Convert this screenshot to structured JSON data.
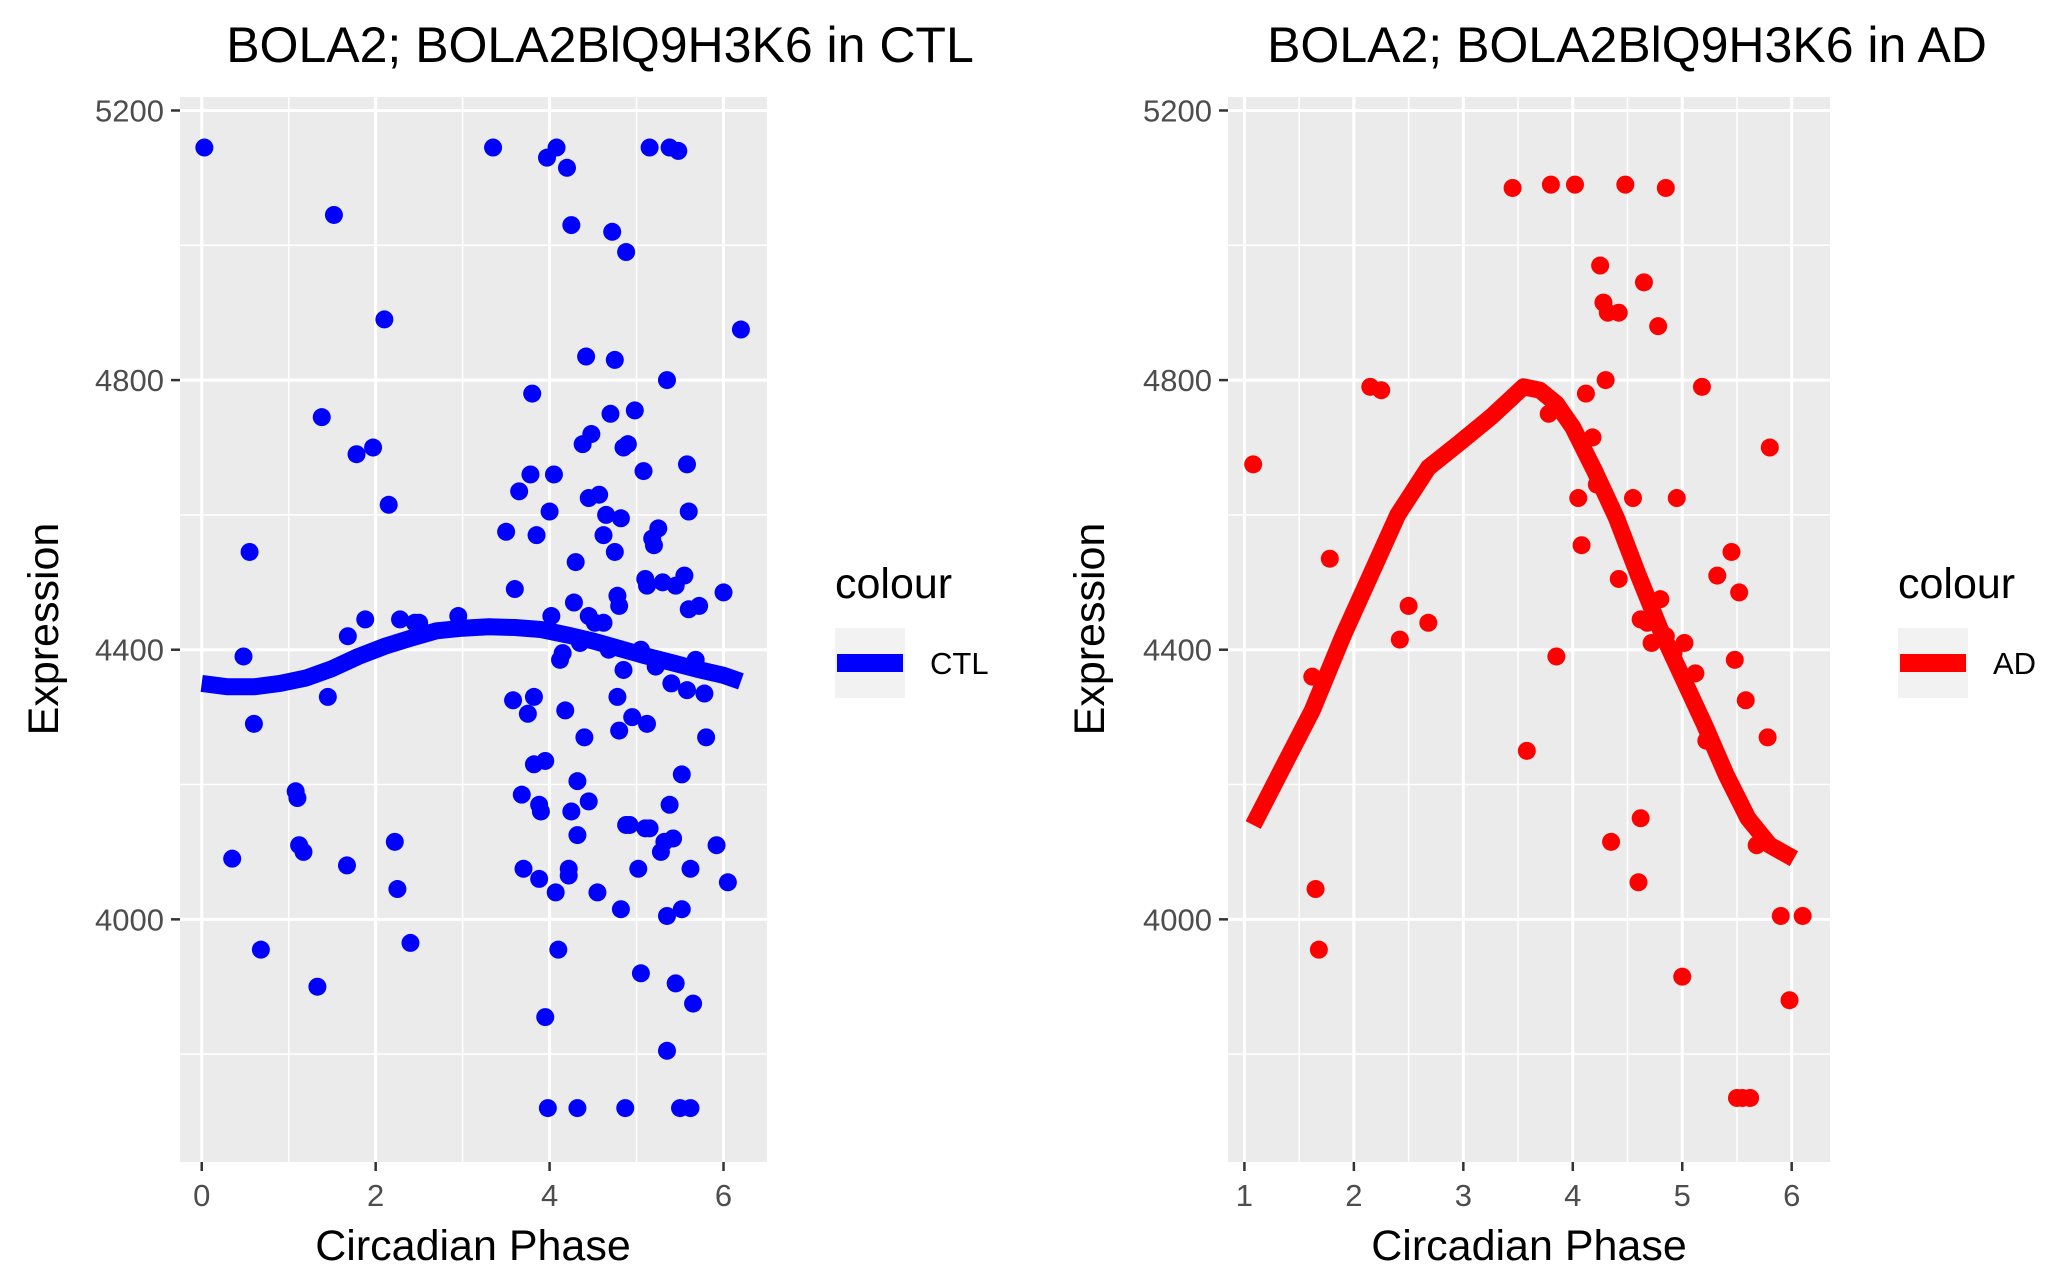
{
  "chart_data": [
    {
      "type": "scatter",
      "title": "BOLA2; BOLA2BlQ9H3K6 in CTL",
      "xlabel": "Circadian Phase",
      "ylabel": "Expression",
      "xlim": [
        -0.25,
        6.5
      ],
      "ylim": [
        3640,
        5220
      ],
      "x_ticks": [
        0,
        2,
        4,
        6
      ],
      "x_tick_labels": [
        "0",
        "2",
        "4",
        "6"
      ],
      "y_ticks": [
        4000,
        4400,
        4800,
        5200
      ],
      "y_tick_labels": [
        "4000",
        "4400",
        "4800",
        "5200"
      ],
      "grid": true,
      "legend_title": "colour",
      "legend_position": "right",
      "color": "#0000ff",
      "series": [
        {
          "name": "CTL",
          "points": [
            [
              0.03,
              5145
            ],
            [
              0.35,
              4090
            ],
            [
              0.48,
              4390
            ],
            [
              0.55,
              4545
            ],
            [
              0.6,
              4290
            ],
            [
              0.68,
              3955
            ],
            [
              1.08,
              4190
            ],
            [
              1.1,
              4180
            ],
            [
              1.12,
              4110
            ],
            [
              1.17,
              4100
            ],
            [
              1.33,
              3900
            ],
            [
              1.38,
              4745
            ],
            [
              1.45,
              4330
            ],
            [
              1.52,
              5045
            ],
            [
              1.67,
              4080
            ],
            [
              1.68,
              4420
            ],
            [
              1.78,
              4690
            ],
            [
              1.88,
              4445
            ],
            [
              1.97,
              4700
            ],
            [
              2.1,
              4890
            ],
            [
              2.15,
              4615
            ],
            [
              2.22,
              4115
            ],
            [
              2.25,
              4045
            ],
            [
              2.28,
              4445
            ],
            [
              2.4,
              3965
            ],
            [
              2.45,
              4440
            ],
            [
              2.5,
              4440
            ],
            [
              2.95,
              4450
            ],
            [
              3.35,
              5145
            ],
            [
              3.5,
              4575
            ],
            [
              3.58,
              4325
            ],
            [
              3.6,
              4490
            ],
            [
              3.65,
              4635
            ],
            [
              3.68,
              4185
            ],
            [
              3.7,
              4075
            ],
            [
              3.75,
              4305
            ],
            [
              3.78,
              4660
            ],
            [
              3.8,
              4780
            ],
            [
              3.82,
              4330
            ],
            [
              3.82,
              4230
            ],
            [
              3.85,
              4570
            ],
            [
              3.88,
              4060
            ],
            [
              3.88,
              4170
            ],
            [
              3.9,
              4160
            ],
            [
              3.95,
              4235
            ],
            [
              3.95,
              3855
            ],
            [
              3.97,
              5130
            ],
            [
              3.98,
              3720
            ],
            [
              4.0,
              4605
            ],
            [
              4.02,
              4450
            ],
            [
              4.05,
              4660
            ],
            [
              4.07,
              4040
            ],
            [
              4.08,
              5145
            ],
            [
              4.1,
              3955
            ],
            [
              4.12,
              4385
            ],
            [
              4.15,
              4395
            ],
            [
              4.18,
              4310
            ],
            [
              4.2,
              5115
            ],
            [
              4.22,
              4075
            ],
            [
              4.22,
              4065
            ],
            [
              4.25,
              5030
            ],
            [
              4.25,
              4160
            ],
            [
              4.28,
              4470
            ],
            [
              4.3,
              4530
            ],
            [
              4.32,
              3720
            ],
            [
              4.32,
              4125
            ],
            [
              4.32,
              4205
            ],
            [
              4.35,
              4410
            ],
            [
              4.38,
              4705
            ],
            [
              4.4,
              4270
            ],
            [
              4.42,
              4835
            ],
            [
              4.45,
              4175
            ],
            [
              4.45,
              4450
            ],
            [
              4.45,
              4625
            ],
            [
              4.48,
              4720
            ],
            [
              4.52,
              4440
            ],
            [
              4.55,
              4040
            ],
            [
              4.57,
              4630
            ],
            [
              4.62,
              4440
            ],
            [
              4.62,
              4570
            ],
            [
              4.65,
              4600
            ],
            [
              4.68,
              4400
            ],
            [
              4.7,
              4750
            ],
            [
              4.72,
              5020
            ],
            [
              4.75,
              4830
            ],
            [
              4.75,
              4545
            ],
            [
              4.78,
              4330
            ],
            [
              4.78,
              4480
            ],
            [
              4.8,
              4280
            ],
            [
              4.8,
              4465
            ],
            [
              4.82,
              4595
            ],
            [
              4.82,
              4015
            ],
            [
              4.85,
              4700
            ],
            [
              4.85,
              4370
            ],
            [
              4.87,
              3720
            ],
            [
              4.88,
              4990
            ],
            [
              4.88,
              4140
            ],
            [
              4.9,
              4705
            ],
            [
              4.92,
              4140
            ],
            [
              4.95,
              4300
            ],
            [
              4.98,
              4755
            ],
            [
              5.02,
              4075
            ],
            [
              5.05,
              4400
            ],
            [
              5.05,
              3920
            ],
            [
              5.08,
              4665
            ],
            [
              5.1,
              4135
            ],
            [
              5.1,
              4505
            ],
            [
              5.12,
              4290
            ],
            [
              5.12,
              4495
            ],
            [
              5.15,
              4135
            ],
            [
              5.15,
              5145
            ],
            [
              5.18,
              4565
            ],
            [
              5.2,
              4555
            ],
            [
              5.22,
              4375
            ],
            [
              5.25,
              4580
            ],
            [
              5.28,
              4100
            ],
            [
              5.3,
              4500
            ],
            [
              5.32,
              4115
            ],
            [
              5.35,
              4800
            ],
            [
              5.35,
              3805
            ],
            [
              5.35,
              4005
            ],
            [
              5.38,
              4170
            ],
            [
              5.38,
              5145
            ],
            [
              5.4,
              4350
            ],
            [
              5.42,
              4120
            ],
            [
              5.45,
              3905
            ],
            [
              5.45,
              4495
            ],
            [
              5.48,
              5140
            ],
            [
              5.5,
              3720
            ],
            [
              5.52,
              4015
            ],
            [
              5.52,
              4215
            ],
            [
              5.55,
              4510
            ],
            [
              5.58,
              4340
            ],
            [
              5.58,
              4675
            ],
            [
              5.6,
              4605
            ],
            [
              5.6,
              4460
            ],
            [
              5.62,
              4075
            ],
            [
              5.62,
              3720
            ],
            [
              5.65,
              3875
            ],
            [
              5.68,
              4385
            ],
            [
              5.72,
              4465
            ],
            [
              5.78,
              4335
            ],
            [
              5.8,
              4270
            ],
            [
              5.92,
              4110
            ],
            [
              6.0,
              4485
            ],
            [
              6.05,
              4055
            ],
            [
              6.2,
              4875
            ]
          ],
          "smooth_x": [
            0.0,
            0.3,
            0.6,
            0.9,
            1.2,
            1.5,
            1.8,
            2.1,
            2.4,
            2.7,
            3.0,
            3.3,
            3.6,
            3.9,
            4.2,
            4.5,
            4.8,
            5.1,
            5.4,
            5.7,
            6.0,
            6.2
          ],
          "smooth_y": [
            4350,
            4345,
            4345,
            4350,
            4358,
            4372,
            4390,
            4405,
            4417,
            4428,
            4432,
            4434,
            4433,
            4430,
            4422,
            4413,
            4402,
            4391,
            4381,
            4371,
            4362,
            4353
          ]
        }
      ]
    },
    {
      "type": "scatter",
      "title": "BOLA2; BOLA2BlQ9H3K6 in AD",
      "xlabel": "Circadian Phase",
      "ylabel": "Expression",
      "xlim": [
        0.85,
        6.35
      ],
      "ylim": [
        3640,
        5220
      ],
      "x_ticks": [
        1,
        2,
        3,
        4,
        5,
        6
      ],
      "x_tick_labels": [
        "1",
        "2",
        "3",
        "4",
        "5",
        "6"
      ],
      "y_ticks": [
        4000,
        4400,
        4800,
        5200
      ],
      "y_tick_labels": [
        "4000",
        "4400",
        "4800",
        "5200"
      ],
      "grid": true,
      "legend_title": "colour",
      "legend_position": "right",
      "color": "#ff0000",
      "series": [
        {
          "name": "AD",
          "points": [
            [
              1.08,
              4675
            ],
            [
              1.62,
              4360
            ],
            [
              1.65,
              4045
            ],
            [
              1.68,
              3955
            ],
            [
              1.78,
              4535
            ],
            [
              2.15,
              4790
            ],
            [
              2.25,
              4785
            ],
            [
              2.42,
              4415
            ],
            [
              2.5,
              4465
            ],
            [
              2.68,
              4440
            ],
            [
              3.45,
              5085
            ],
            [
              3.58,
              4250
            ],
            [
              3.78,
              4750
            ],
            [
              3.8,
              5090
            ],
            [
              3.85,
              4390
            ],
            [
              4.02,
              5090
            ],
            [
              4.05,
              4625
            ],
            [
              4.08,
              4555
            ],
            [
              4.12,
              4780
            ],
            [
              4.18,
              4715
            ],
            [
              4.22,
              4645
            ],
            [
              4.25,
              4970
            ],
            [
              4.28,
              4915
            ],
            [
              4.3,
              4800
            ],
            [
              4.32,
              4900
            ],
            [
              4.35,
              4115
            ],
            [
              4.42,
              4900
            ],
            [
              4.42,
              4505
            ],
            [
              4.48,
              5090
            ],
            [
              4.55,
              4625
            ],
            [
              4.6,
              4055
            ],
            [
              4.62,
              4150
            ],
            [
              4.62,
              4445
            ],
            [
              4.65,
              4945
            ],
            [
              4.68,
              4440
            ],
            [
              4.72,
              4410
            ],
            [
              4.78,
              4880
            ],
            [
              4.8,
              4475
            ],
            [
              4.85,
              5085
            ],
            [
              4.85,
              4420
            ],
            [
              4.92,
              4395
            ],
            [
              4.95,
              4625
            ],
            [
              5.0,
              3915
            ],
            [
              5.02,
              4410
            ],
            [
              5.12,
              4365
            ],
            [
              5.18,
              4790
            ],
            [
              5.22,
              4265
            ],
            [
              5.32,
              4510
            ],
            [
              5.45,
              4545
            ],
            [
              5.48,
              4385
            ],
            [
              5.5,
              3735
            ],
            [
              5.52,
              4485
            ],
            [
              5.55,
              3735
            ],
            [
              5.58,
              4325
            ],
            [
              5.62,
              3735
            ],
            [
              5.68,
              4110
            ],
            [
              5.78,
              4270
            ],
            [
              5.8,
              4700
            ],
            [
              5.9,
              4005
            ],
            [
              5.98,
              3880
            ],
            [
              6.1,
              4005
            ]
          ],
          "smooth_x": [
            1.08,
            1.35,
            1.62,
            1.9,
            2.15,
            2.4,
            2.68,
            2.95,
            3.25,
            3.45,
            3.55,
            3.7,
            3.85,
            4.0,
            4.2,
            4.4,
            4.6,
            4.8,
            5.0,
            5.2,
            5.4,
            5.6,
            5.8,
            6.02
          ],
          "smooth_y": [
            4140,
            4225,
            4310,
            4420,
            4510,
            4600,
            4670,
            4705,
            4745,
            4775,
            4790,
            4785,
            4765,
            4730,
            4665,
            4595,
            4510,
            4430,
            4360,
            4290,
            4215,
            4150,
            4110,
            4090
          ]
        }
      ]
    }
  ]
}
